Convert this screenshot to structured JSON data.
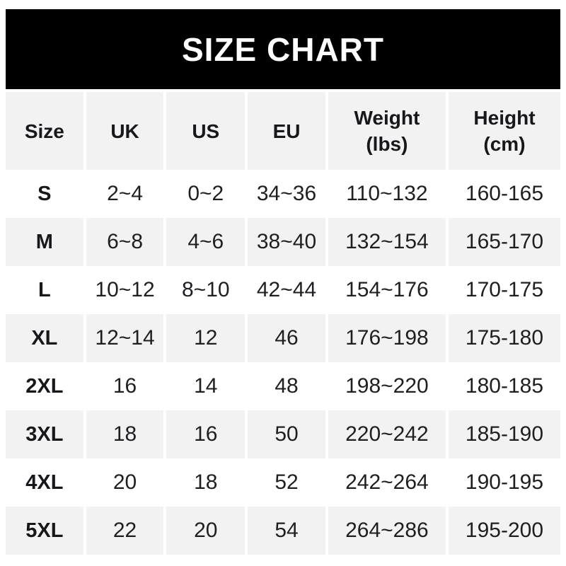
{
  "banner": {
    "title": "SIZE CHART"
  },
  "colors": {
    "banner_bg": "#000000",
    "banner_text": "#ffffff",
    "row_alt_bg": "#f2f2f2",
    "row_bg": "#ffffff",
    "text": "#1f1f23"
  },
  "table": {
    "headers": [
      "Size",
      "UK",
      "US",
      "EU",
      "Weight\n(lbs)",
      "Height\n(cm)"
    ],
    "rows": [
      {
        "size": "S",
        "uk": "2~4",
        "us": "0~2",
        "eu": "34~36",
        "weight_lbs": "110~132",
        "height_cm": "160-165"
      },
      {
        "size": "M",
        "uk": "6~8",
        "us": "4~6",
        "eu": "38~40",
        "weight_lbs": "132~154",
        "height_cm": "165-170"
      },
      {
        "size": "L",
        "uk": "10~12",
        "us": "8~10",
        "eu": "42~44",
        "weight_lbs": "154~176",
        "height_cm": "170-175"
      },
      {
        "size": "XL",
        "uk": "12~14",
        "us": "12",
        "eu": "46",
        "weight_lbs": "176~198",
        "height_cm": "175-180"
      },
      {
        "size": "2XL",
        "uk": "16",
        "us": "14",
        "eu": "48",
        "weight_lbs": "198~220",
        "height_cm": "180-185"
      },
      {
        "size": "3XL",
        "uk": "18",
        "us": "16",
        "eu": "50",
        "weight_lbs": "220~242",
        "height_cm": "185-190"
      },
      {
        "size": "4XL",
        "uk": "20",
        "us": "18",
        "eu": "52",
        "weight_lbs": "242~264",
        "height_cm": "190-195"
      },
      {
        "size": "5XL",
        "uk": "22",
        "us": "20",
        "eu": "54",
        "weight_lbs": "264~286",
        "height_cm": "195-200"
      }
    ]
  }
}
